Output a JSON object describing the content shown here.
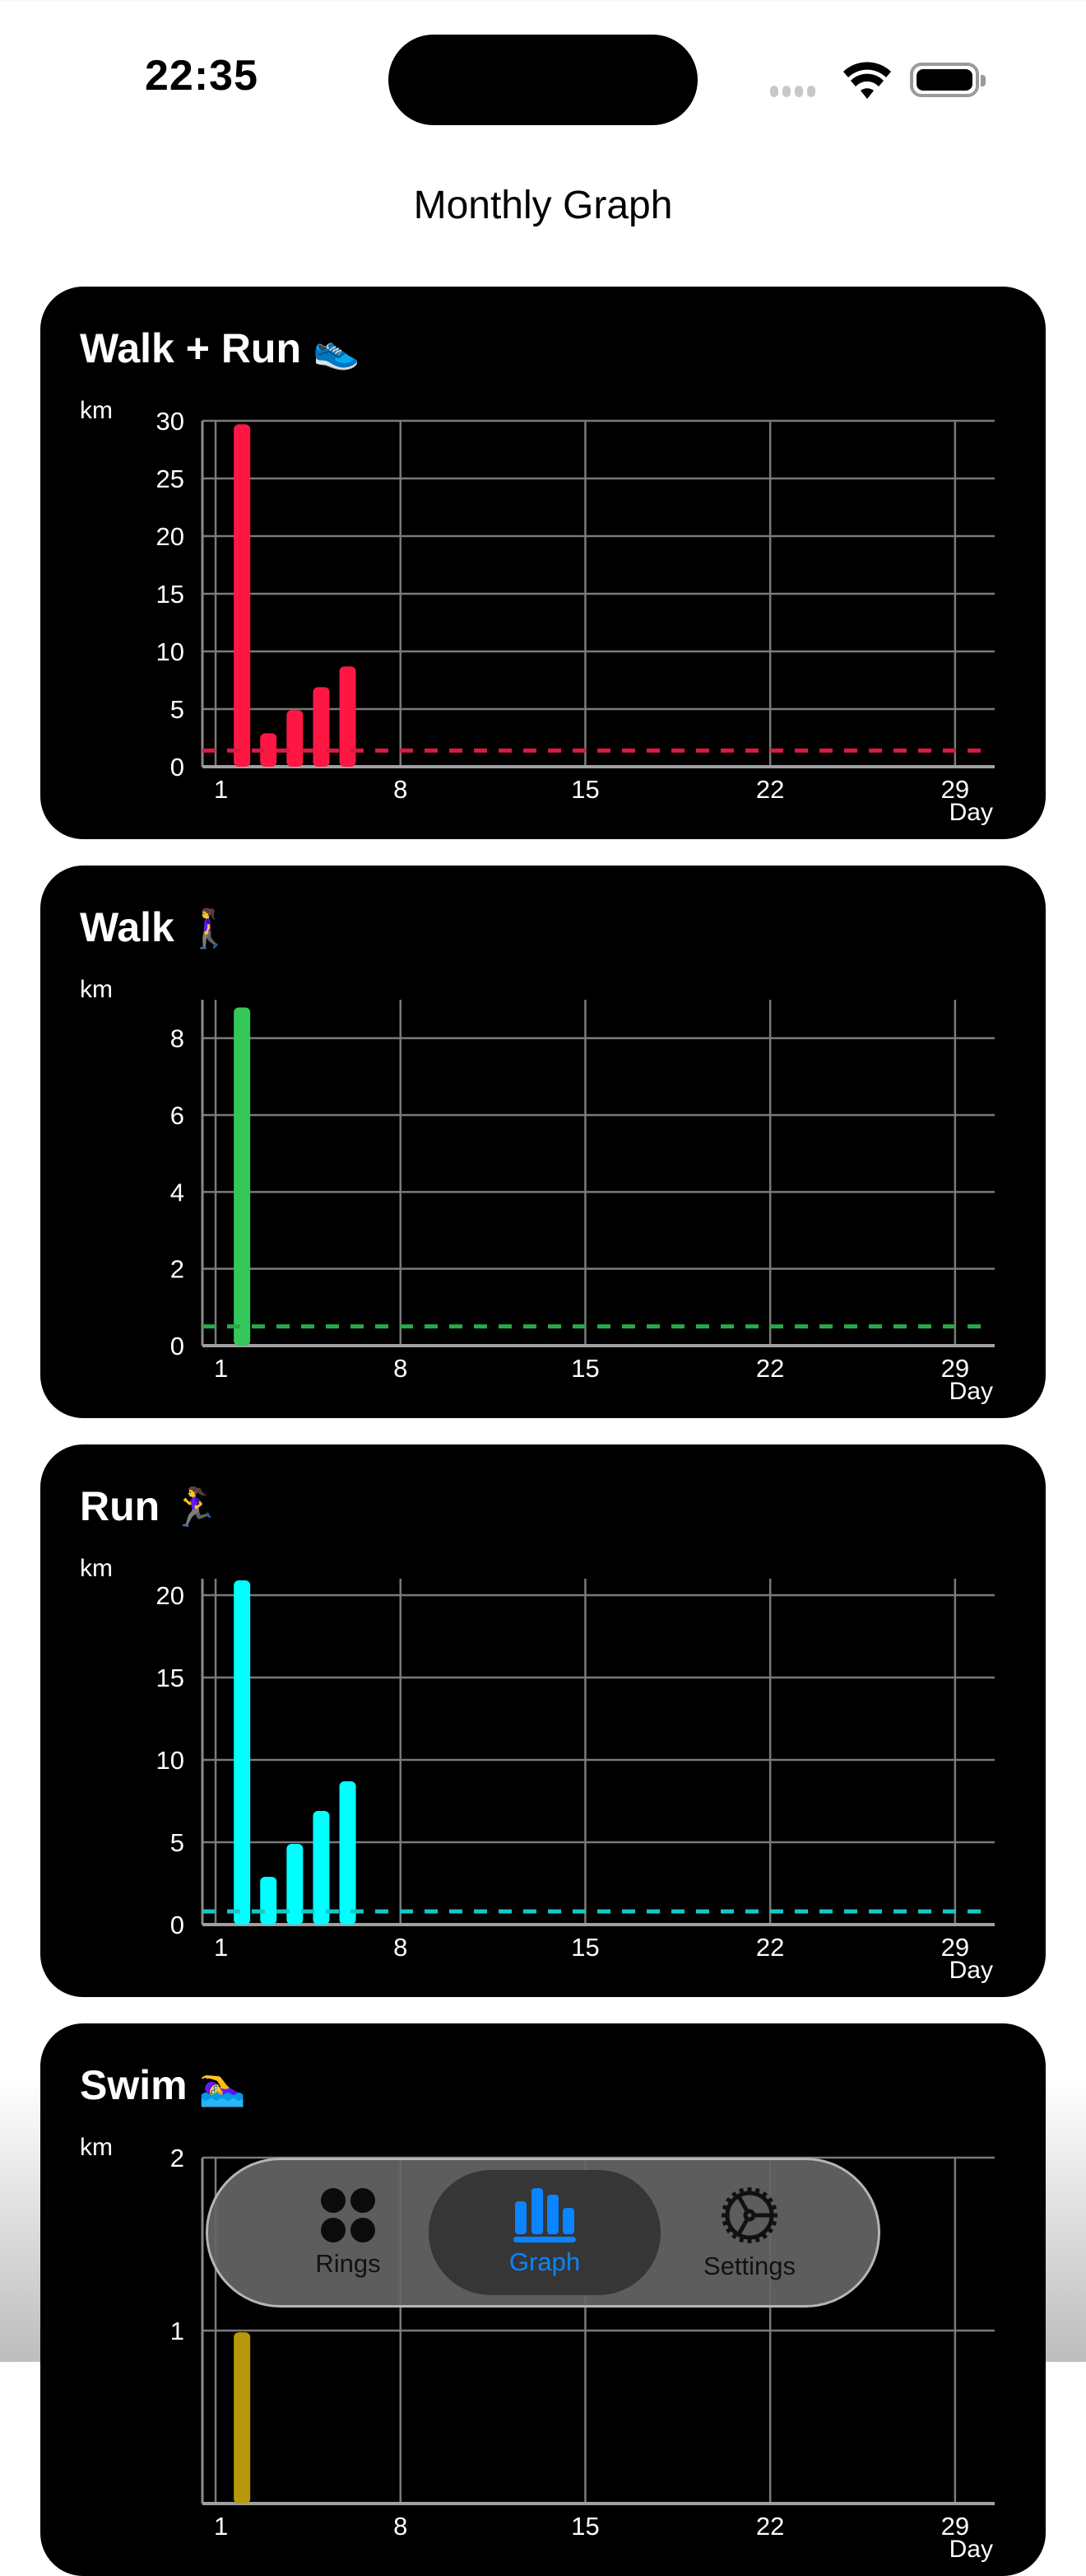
{
  "status_bar": {
    "time": "22:35"
  },
  "header": {
    "title": "Monthly Graph"
  },
  "cards": [
    {
      "title": "Walk + Run",
      "emoji": "👟",
      "unit": "km",
      "x_unit": "Day",
      "color": "#ff1744",
      "dash_color": "#d81b41"
    },
    {
      "title": "Walk",
      "emoji": "🚶‍♀️",
      "unit": "km",
      "x_unit": "Day",
      "color": "#34c759",
      "dash_color": "#2aa84a"
    },
    {
      "title": "Run",
      "emoji": "🏃‍♀️",
      "unit": "km",
      "x_unit": "Day",
      "color": "#00ffff",
      "dash_color": "#14c8c8"
    },
    {
      "title": "Swim",
      "emoji": "🏊‍♀️",
      "unit": "km",
      "x_unit": "Day",
      "color": "#b8980a",
      "dash_color": "#b8980a"
    }
  ],
  "tab_bar": {
    "tabs": [
      {
        "label": "Rings",
        "icon": "four-circles-icon",
        "active": false
      },
      {
        "label": "Graph",
        "icon": "bar-chart-icon",
        "active": true
      },
      {
        "label": "Settings",
        "icon": "gear-icon",
        "active": false
      }
    ],
    "active_color": "#0a84ff"
  },
  "chart_data": [
    {
      "type": "bar",
      "title": "Walk + Run",
      "xlabel": "Day",
      "ylabel": "km",
      "x_ticks": [
        1,
        8,
        15,
        22,
        29
      ],
      "y_ticks": [
        0,
        5,
        10,
        15,
        20,
        25,
        30
      ],
      "xlim": [
        0.5,
        30.5
      ],
      "ylim": [
        0,
        30
      ],
      "grid": true,
      "x": [
        2,
        3,
        4,
        5,
        6
      ],
      "values": [
        29.7,
        2.9,
        4.9,
        6.9,
        8.7
      ],
      "average_line": 1.4,
      "color": "#ff1744"
    },
    {
      "type": "bar",
      "title": "Walk",
      "xlabel": "Day",
      "ylabel": "km",
      "x_ticks": [
        1,
        8,
        15,
        22,
        29
      ],
      "y_ticks": [
        0,
        2,
        4,
        6,
        8
      ],
      "xlim": [
        0.5,
        30.5
      ],
      "ylim": [
        0,
        9
      ],
      "grid": true,
      "x": [
        2
      ],
      "values": [
        8.8
      ],
      "average_line": 0.5,
      "color": "#34c759"
    },
    {
      "type": "bar",
      "title": "Run",
      "xlabel": "Day",
      "ylabel": "km",
      "x_ticks": [
        1,
        8,
        15,
        22,
        29
      ],
      "y_ticks": [
        0,
        5,
        10,
        15,
        20
      ],
      "xlim": [
        0.5,
        30.5
      ],
      "ylim": [
        0,
        21
      ],
      "grid": true,
      "x": [
        2,
        3,
        4,
        5,
        6
      ],
      "values": [
        20.9,
        2.9,
        4.9,
        6.9,
        8.7
      ],
      "average_line": 0.8,
      "color": "#00ffff"
    },
    {
      "type": "bar",
      "title": "Swim",
      "xlabel": "Day",
      "ylabel": "km",
      "x_ticks": [
        1,
        8,
        15,
        22,
        29
      ],
      "y_ticks": [
        1,
        2
      ],
      "xlim": [
        0.5,
        30.5
      ],
      "ylim": [
        0,
        2
      ],
      "grid": true,
      "x": [
        2
      ],
      "values": [
        0.99
      ],
      "average_line": null,
      "color": "#b8980a"
    }
  ]
}
